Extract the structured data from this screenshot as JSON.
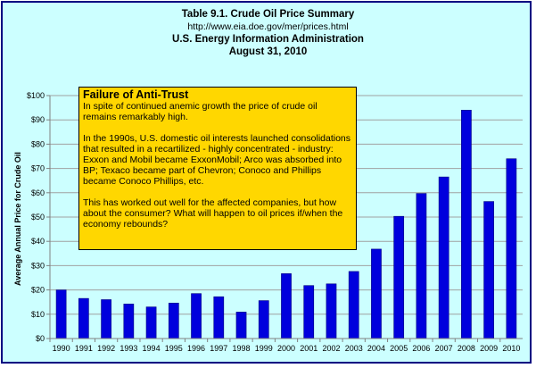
{
  "header": {
    "title": "Table 9.1. Crude Oil Price Summary",
    "url": "http://www.eia.doe.gov/mer/prices.html",
    "agency": "U.S. Energy Information Administration",
    "date": "August 31, 2010"
  },
  "note": {
    "title": "Failure of Anti-Trust",
    "paragraphs": [
      "In spite of continued anemic growth the price of crude oil remains remarkably high.",
      "In the 1990s, U.S. domestic oil interests launched consolidations that resulted in a recartilized - highly concentrated - industry: Exxon and Mobil became ExxonMobil; Arco was absorbed into BP; Texaco became part of Chevron; Conoco and Phillips became Conoco Phillips, etc.",
      "This has worked out well for the affected companies, but how about the consumer?  What will happen to oil prices if/when the economy rebounds?"
    ]
  },
  "colors": {
    "bar": "#0000dd",
    "bar_edge": "#000080",
    "plot_background": "#ccffff",
    "note_background": "#ffd700"
  },
  "chart_data": {
    "type": "bar",
    "title": "Table 9.1. Crude Oil Price Summary",
    "xlabel": "",
    "ylabel": "Average Annual Price for Crude Oil",
    "ylim": [
      0,
      100
    ],
    "grid": true,
    "y_ticks": [
      "$0",
      "$10",
      "$20",
      "$30",
      "$40",
      "$50",
      "$60",
      "$70",
      "$80",
      "$90",
      "$100"
    ],
    "categories": [
      "1990",
      "1991",
      "1992",
      "1993",
      "1994",
      "1995",
      "1996",
      "1997",
      "1998",
      "1999",
      "2000",
      "2001",
      "2002",
      "2003",
      "2004",
      "2005",
      "2006",
      "2007",
      "2008",
      "2009",
      "2010"
    ],
    "values": [
      20.0,
      16.5,
      16.0,
      14.2,
      13.0,
      14.6,
      18.5,
      17.2,
      10.9,
      15.6,
      26.7,
      21.8,
      22.5,
      27.6,
      36.8,
      50.3,
      59.7,
      66.5,
      94.0,
      56.4,
      74.0
    ]
  }
}
